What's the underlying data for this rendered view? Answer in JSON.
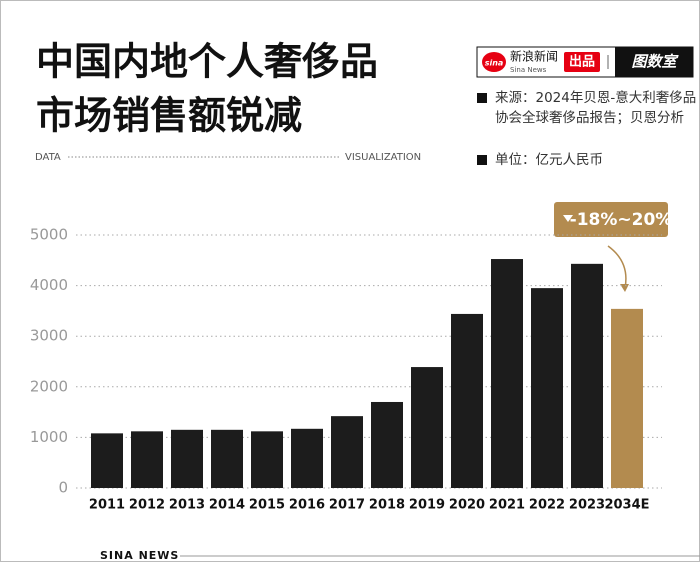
{
  "chart_data": {
    "type": "bar",
    "title_lines": [
      "中国内地个人奢侈品",
      "市场销售额锐减"
    ],
    "brand": {
      "name": "新浪新闻",
      "name_en": "Sina News",
      "tag": "出品",
      "product": "图数室",
      "logo": "sina"
    },
    "header_left": "DATA",
    "header_right": "VISUALIZATION",
    "source": "来源：2024年贝恩-意大利奢侈品协会全球奢侈品报告；贝恩分析",
    "unit": "单位：亿元人民币",
    "annotation": "-18%~20%",
    "footer": "SINA NEWS",
    "categories": [
      "2011",
      "2012",
      "2013",
      "2014",
      "2015",
      "2016",
      "2017",
      "2018",
      "2019",
      "2020",
      "2021",
      "2022",
      "2023",
      "2034E"
    ],
    "values": [
      1080,
      1120,
      1150,
      1150,
      1120,
      1170,
      1420,
      1700,
      2390,
      3440,
      4525,
      3950,
      4430,
      3540
    ],
    "colors": [
      "#1c1c1c",
      "#1c1c1c",
      "#1c1c1c",
      "#1c1c1c",
      "#1c1c1c",
      "#1c1c1c",
      "#1c1c1c",
      "#1c1c1c",
      "#1c1c1c",
      "#1c1c1c",
      "#1c1c1c",
      "#1c1c1c",
      "#1c1c1c",
      "#b38b4f"
    ],
    "ylim": [
      0,
      5000
    ],
    "yticks": [
      0,
      1000,
      2000,
      3000,
      4000,
      5000
    ],
    "grid": true
  }
}
